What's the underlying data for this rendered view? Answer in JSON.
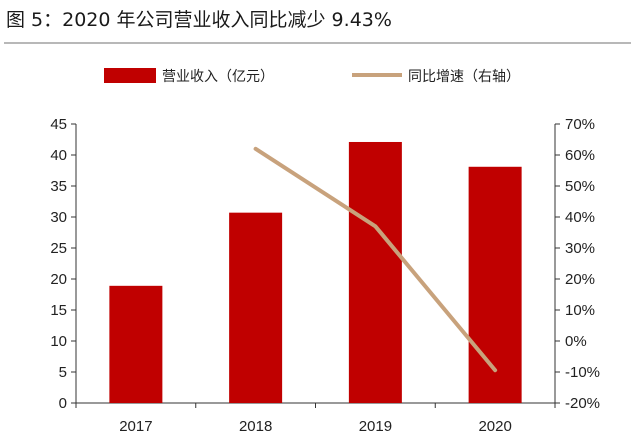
{
  "title": "图 5：2020 年公司营业收入同比减少 9.43%",
  "chart_data": {
    "type": "bar",
    "categories": [
      "2017",
      "2018",
      "2019",
      "2020"
    ],
    "series": [
      {
        "name": "营业收入（亿元）",
        "type": "bar",
        "axis": "left",
        "color": "#c00000",
        "values": [
          18.9,
          30.7,
          42.1,
          38.1
        ]
      },
      {
        "name": "同比增速（右轴）",
        "type": "line",
        "axis": "right",
        "color": "#c8a27c",
        "values": [
          null,
          62,
          37,
          -9.43
        ]
      }
    ],
    "y_left": {
      "min": 0,
      "max": 45,
      "step": 5,
      "tick_labels": [
        "0",
        "5",
        "10",
        "15",
        "20",
        "25",
        "30",
        "35",
        "40",
        "45"
      ]
    },
    "y_right": {
      "min": -20,
      "max": 70,
      "step": 10,
      "tick_labels": [
        "-20%",
        "-10%",
        "0%",
        "10%",
        "20%",
        "30%",
        "40%",
        "50%",
        "60%",
        "70%"
      ]
    },
    "grid": false,
    "legend_position": "top"
  }
}
